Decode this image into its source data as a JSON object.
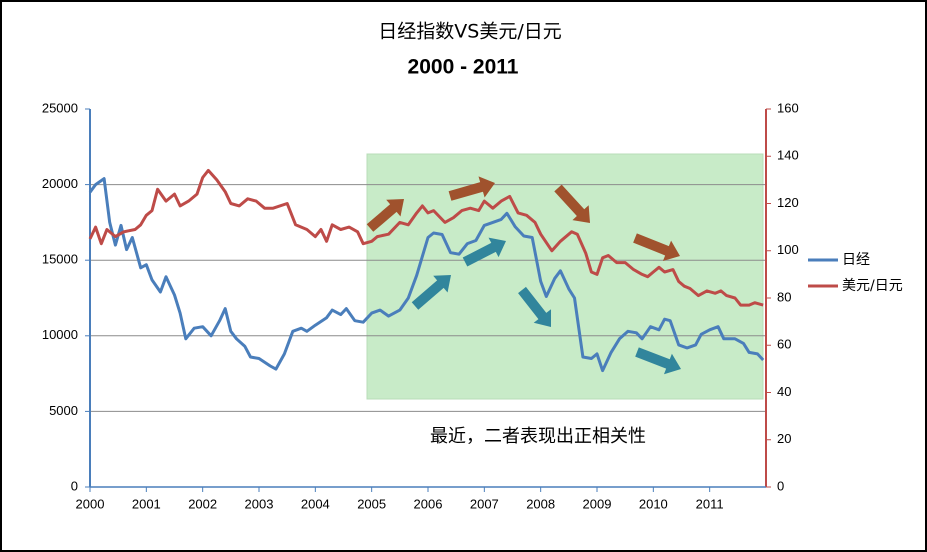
{
  "chart_data": {
    "type": "line",
    "title": "日经指数VS美元/日元",
    "subtitle": "2000 - 2011",
    "annotation": "最近，二者表现出正相关性",
    "xlim": [
      2000,
      2012
    ],
    "xticks": [
      2000,
      2001,
      2002,
      2003,
      2004,
      2005,
      2006,
      2007,
      2008,
      2009,
      2010,
      2011
    ],
    "ylim": [
      0,
      25000
    ],
    "yticks": [
      0,
      5000,
      10000,
      15000,
      20000,
      25000
    ],
    "y2lim": [
      0,
      160
    ],
    "y2ticks": [
      0,
      20,
      40,
      60,
      80,
      100,
      120,
      140,
      160
    ],
    "grid": true,
    "legend": "right",
    "series": [
      {
        "name": "日经",
        "color": "#4a7ebb",
        "x": [
          2000.0,
          2000.1,
          2000.25,
          2000.35,
          2000.45,
          2000.55,
          2000.65,
          2000.75,
          2000.9,
          2001.0,
          2001.1,
          2001.25,
          2001.35,
          2001.5,
          2001.6,
          2001.7,
          2001.85,
          2002.0,
          2002.15,
          2002.3,
          2002.4,
          2002.5,
          2002.6,
          2002.75,
          2002.85,
          2003.0,
          2003.2,
          2003.3,
          2003.45,
          2003.6,
          2003.75,
          2003.85,
          2004.0,
          2004.2,
          2004.3,
          2004.45,
          2004.55,
          2004.7,
          2004.85,
          2005.0,
          2005.15,
          2005.3,
          2005.5,
          2005.65,
          2005.8,
          2006.0,
          2006.1,
          2006.25,
          2006.4,
          2006.55,
          2006.7,
          2006.85,
          2007.0,
          2007.15,
          2007.3,
          2007.4,
          2007.55,
          2007.7,
          2007.85,
          2008.0,
          2008.1,
          2008.25,
          2008.35,
          2008.5,
          2008.6,
          2008.75,
          2008.9,
          2009.0,
          2009.1,
          2009.25,
          2009.4,
          2009.55,
          2009.7,
          2009.8,
          2009.95,
          2010.1,
          2010.2,
          2010.3,
          2010.45,
          2010.6,
          2010.75,
          2010.85,
          2011.0,
          2011.15,
          2011.25,
          2011.45,
          2011.6,
          2011.7,
          2011.85,
          2011.95
        ],
        "values": [
          19500,
          20000,
          20400,
          17500,
          16000,
          17300,
          15700,
          16500,
          14500,
          14700,
          13700,
          12900,
          13900,
          12700,
          11500,
          9800,
          10500,
          10600,
          10000,
          11000,
          11800,
          10300,
          9800,
          9300,
          8600,
          8500,
          8000,
          7800,
          8800,
          10300,
          10500,
          10300,
          10700,
          11200,
          11700,
          11400,
          11800,
          11000,
          10900,
          11500,
          11700,
          11300,
          11700,
          12500,
          14000,
          16500,
          16800,
          16700,
          15500,
          15400,
          16100,
          16300,
          17300,
          17500,
          17700,
          18100,
          17200,
          16600,
          16500,
          13600,
          12600,
          13800,
          14300,
          13100,
          12500,
          8600,
          8500,
          8800,
          7700,
          8900,
          9800,
          10300,
          10200,
          9800,
          10600,
          10400,
          11100,
          11000,
          9400,
          9200,
          9400,
          10100,
          10400,
          10600,
          9800,
          9800,
          9500,
          8900,
          8800,
          8400
        ]
      },
      {
        "name": "美元/日元",
        "color": "#be4b48",
        "axis": "y2",
        "x": [
          2000.0,
          2000.1,
          2000.2,
          2000.3,
          2000.45,
          2000.6,
          2000.8,
          2000.9,
          2001.0,
          2001.1,
          2001.2,
          2001.35,
          2001.5,
          2001.6,
          2001.75,
          2001.9,
          2002.0,
          2002.1,
          2002.25,
          2002.4,
          2002.5,
          2002.65,
          2002.8,
          2002.95,
          2003.1,
          2003.25,
          2003.5,
          2003.65,
          2003.85,
          2004.0,
          2004.1,
          2004.2,
          2004.3,
          2004.45,
          2004.6,
          2004.75,
          2004.85,
          2005.0,
          2005.1,
          2005.3,
          2005.5,
          2005.65,
          2005.8,
          2005.9,
          2006.0,
          2006.1,
          2006.3,
          2006.45,
          2006.6,
          2006.75,
          2006.9,
          2007.0,
          2007.15,
          2007.3,
          2007.45,
          2007.6,
          2007.75,
          2007.9,
          2008.0,
          2008.2,
          2008.35,
          2008.55,
          2008.65,
          2008.8,
          2008.9,
          2009.0,
          2009.1,
          2009.2,
          2009.35,
          2009.5,
          2009.65,
          2009.8,
          2009.9,
          2010.0,
          2010.1,
          2010.2,
          2010.35,
          2010.45,
          2010.55,
          2010.65,
          2010.8,
          2010.95,
          2011.1,
          2011.2,
          2011.3,
          2011.45,
          2011.55,
          2011.7,
          2011.8,
          2011.95
        ],
        "values": [
          105,
          110,
          103,
          109,
          106,
          108,
          109,
          111,
          115,
          117,
          126,
          121,
          124,
          119,
          121,
          124,
          131,
          134,
          130,
          125,
          120,
          119,
          122,
          121,
          118,
          118,
          120,
          111,
          109,
          106,
          109,
          104,
          111,
          109,
          110,
          108,
          103,
          104,
          106,
          107,
          112,
          111,
          116,
          119,
          116,
          117,
          112,
          114,
          117,
          118,
          117,
          121,
          118,
          121,
          123,
          116,
          115,
          112,
          107,
          100,
          104,
          108,
          107,
          99,
          91,
          90,
          97,
          98,
          95,
          95,
          92,
          90,
          89,
          91,
          93,
          91,
          92,
          87,
          85,
          84,
          81,
          83,
          82,
          83,
          81,
          80,
          77,
          77,
          78,
          77
        ]
      }
    ]
  }
}
